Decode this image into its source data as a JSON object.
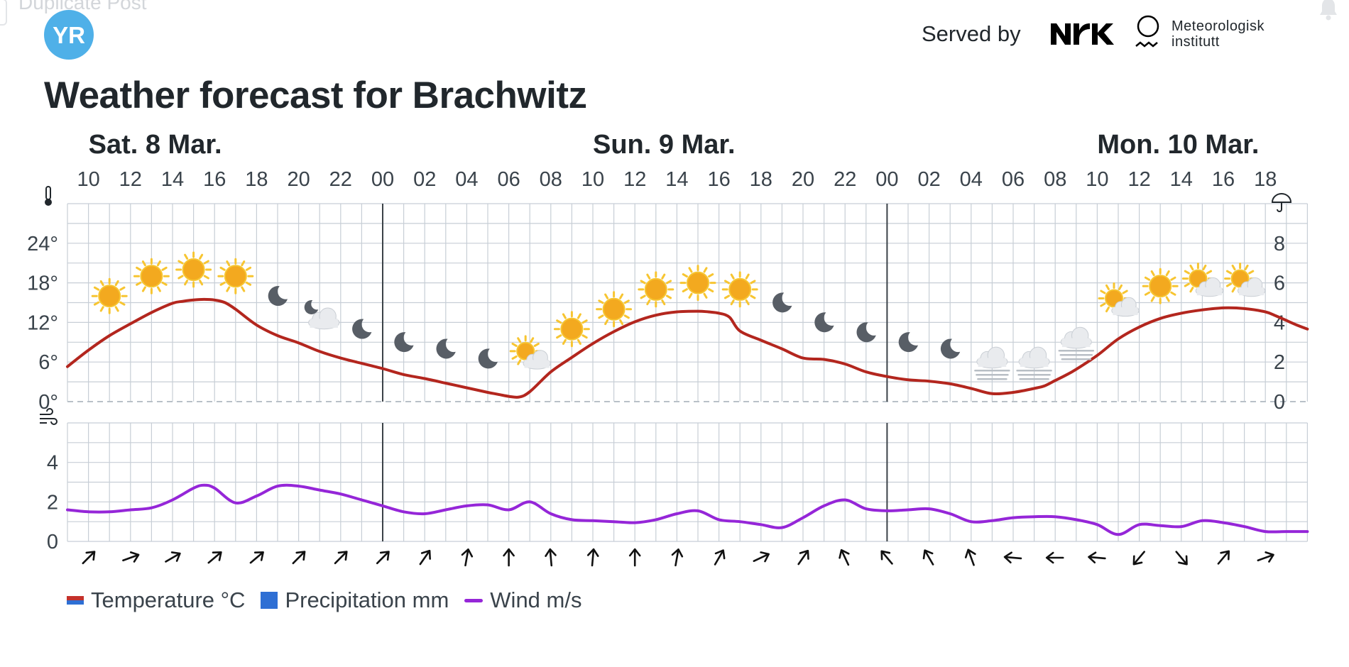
{
  "page": {
    "ghost_text": "Duplicate Post",
    "logo_text": "YR",
    "served_by": "Served by",
    "met_line1": "Meteorologisk",
    "met_line2": "institutt",
    "title": "Weather forecast for Brachwitz"
  },
  "legend": {
    "temperature": "Temperature °C",
    "precipitation": "Precipitation mm",
    "wind": "Wind m/s"
  },
  "colors": {
    "temperature": "#b3261e",
    "wind": "#9526d8",
    "precipitation": "#2e6fd4",
    "grid": "#c7ced6",
    "logo": "#4fb0e8"
  },
  "chart_data": {
    "type": "line",
    "days": [
      {
        "label": "Sat. 8 Mar.",
        "hour": 10
      },
      {
        "label": "Sun. 9 Mar.",
        "hour": 34
      },
      {
        "label": "Mon. 10 Mar.",
        "hour": 58
      }
    ],
    "hour_labels": [
      "10",
      "12",
      "14",
      "16",
      "18",
      "20",
      "22",
      "00",
      "02",
      "04",
      "06",
      "08",
      "10",
      "12",
      "14",
      "16",
      "18",
      "20",
      "22",
      "00",
      "02",
      "04",
      "06",
      "08",
      "10",
      "12",
      "14",
      "16",
      "18"
    ],
    "temperature": {
      "name": "Temperature °C",
      "axis_ticks": [
        "0°",
        "6°",
        "12°",
        "18°",
        "24°"
      ],
      "ylim": [
        0,
        30
      ],
      "x_hours": [
        9,
        10,
        11,
        12,
        13,
        14,
        14.5,
        15,
        15.5,
        16,
        16.5,
        17,
        18,
        19,
        20,
        21,
        22,
        23,
        24,
        25,
        26,
        27,
        28,
        29,
        29.5,
        30,
        30.5,
        31,
        32,
        33,
        34,
        35,
        36,
        37,
        38,
        39,
        39.5,
        40,
        40.5,
        41,
        42,
        43,
        44,
        45,
        46,
        47,
        48,
        49,
        50,
        51,
        52,
        53,
        54,
        55,
        55.5,
        56,
        56.5,
        57,
        58,
        59,
        60,
        61,
        62,
        63,
        64,
        65,
        66,
        66.5,
        67,
        67.5,
        68
      ],
      "values": [
        5.3,
        7.8,
        10.0,
        11.8,
        13.5,
        14.9,
        15.2,
        15.4,
        15.5,
        15.4,
        15.0,
        14.0,
        11.6,
        10.0,
        8.9,
        7.6,
        6.6,
        5.8,
        5.0,
        4.1,
        3.5,
        2.8,
        2.1,
        1.4,
        1.1,
        0.8,
        0.7,
        1.5,
        4.5,
        6.7,
        8.8,
        10.6,
        12.1,
        13.1,
        13.6,
        13.7,
        13.6,
        13.4,
        12.8,
        10.7,
        9.3,
        8.0,
        6.6,
        6.4,
        5.7,
        4.5,
        3.8,
        3.3,
        3.1,
        2.7,
        2.0,
        1.2,
        1.4,
        2.0,
        2.4,
        3.2,
        4.0,
        4.9,
        7.0,
        9.5,
        11.3,
        12.6,
        13.4,
        13.9,
        14.2,
        14.1,
        13.6,
        13.0,
        12.3,
        11.6,
        11.0
      ]
    },
    "precipitation": {
      "name": "Precipitation mm",
      "axis_ticks": [
        "0",
        "2",
        "4",
        "6",
        "8"
      ],
      "ylim": [
        0,
        10
      ],
      "values": []
    },
    "wind": {
      "name": "Wind m/s",
      "axis_ticks": [
        "0",
        "2",
        "4"
      ],
      "ylim": [
        0,
        6
      ],
      "x_hours": [
        9,
        10,
        11,
        12,
        13,
        14,
        15,
        15.5,
        16,
        17,
        18,
        19,
        20,
        21,
        22,
        23,
        24,
        25,
        26,
        27,
        28,
        29,
        30,
        31,
        32,
        33,
        34,
        35,
        36,
        37,
        38,
        39,
        40,
        41,
        42,
        43,
        44,
        45,
        46,
        47,
        48,
        49,
        50,
        51,
        52,
        53,
        54,
        55,
        56,
        57,
        58,
        59,
        60,
        61,
        62,
        63,
        64,
        65,
        66,
        67,
        68
      ],
      "values": [
        1.6,
        1.5,
        1.5,
        1.6,
        1.7,
        2.1,
        2.7,
        2.85,
        2.7,
        1.95,
        2.3,
        2.8,
        2.8,
        2.6,
        2.4,
        2.1,
        1.8,
        1.5,
        1.4,
        1.6,
        1.8,
        1.85,
        1.6,
        2.0,
        1.4,
        1.1,
        1.05,
        1.0,
        0.95,
        1.1,
        1.4,
        1.55,
        1.1,
        1.0,
        0.85,
        0.7,
        1.2,
        1.8,
        2.1,
        1.65,
        1.55,
        1.6,
        1.65,
        1.4,
        1.0,
        1.05,
        1.2,
        1.25,
        1.25,
        1.1,
        0.85,
        0.35,
        0.85,
        0.8,
        0.75,
        1.05,
        0.95,
        0.75,
        0.5,
        0.5,
        0.5
      ]
    },
    "weather_symbols": [
      {
        "hour": 11,
        "symbol": "sun-icon",
        "temp": 16
      },
      {
        "hour": 13,
        "symbol": "sun-icon",
        "temp": 19
      },
      {
        "hour": 15,
        "symbol": "sun-icon",
        "temp": 20
      },
      {
        "hour": 17,
        "symbol": "sun-icon",
        "temp": 19
      },
      {
        "hour": 19,
        "symbol": "moon-icon",
        "temp": 16
      },
      {
        "hour": 21,
        "symbol": "moon-cloud-icon",
        "temp": 13
      },
      {
        "hour": 23,
        "symbol": "moon-icon",
        "temp": 11
      },
      {
        "hour": 25,
        "symbol": "moon-icon",
        "temp": 9
      },
      {
        "hour": 27,
        "symbol": "moon-icon",
        "temp": 8
      },
      {
        "hour": 29,
        "symbol": "moon-icon",
        "temp": 6.5
      },
      {
        "hour": 31,
        "symbol": "sun-cloud-icon",
        "temp": 7
      },
      {
        "hour": 33,
        "symbol": "sun-icon",
        "temp": 11
      },
      {
        "hour": 35,
        "symbol": "sun-icon",
        "temp": 14
      },
      {
        "hour": 37,
        "symbol": "sun-icon",
        "temp": 17
      },
      {
        "hour": 39,
        "symbol": "sun-icon",
        "temp": 18
      },
      {
        "hour": 41,
        "symbol": "sun-icon",
        "temp": 17
      },
      {
        "hour": 43,
        "symbol": "moon-icon",
        "temp": 15
      },
      {
        "hour": 45,
        "symbol": "moon-icon",
        "temp": 12
      },
      {
        "hour": 47,
        "symbol": "moon-icon",
        "temp": 10.5
      },
      {
        "hour": 49,
        "symbol": "moon-icon",
        "temp": 9
      },
      {
        "hour": 51,
        "symbol": "moon-icon",
        "temp": 8
      },
      {
        "hour": 53,
        "symbol": "fog-icon",
        "temp": 6
      },
      {
        "hour": 55,
        "symbol": "fog-icon",
        "temp": 6
      },
      {
        "hour": 57,
        "symbol": "fog-icon",
        "temp": 9
      },
      {
        "hour": 59,
        "symbol": "sun-cloud-icon",
        "temp": 15
      },
      {
        "hour": 61,
        "symbol": "sun-icon",
        "temp": 17.5
      },
      {
        "hour": 63,
        "symbol": "sun-cloud-icon",
        "temp": 18
      },
      {
        "hour": 65,
        "symbol": "sun-cloud-icon",
        "temp": 18
      }
    ],
    "wind_direction_arrows_deg": [
      225,
      250,
      240,
      230,
      230,
      225,
      225,
      225,
      215,
      190,
      180,
      175,
      185,
      180,
      190,
      210,
      245,
      215,
      155,
      140,
      150,
      160,
      95,
      90,
      95,
      40,
      320,
      220,
      250
    ],
    "grid": true,
    "legend_position": "bottom-left"
  }
}
